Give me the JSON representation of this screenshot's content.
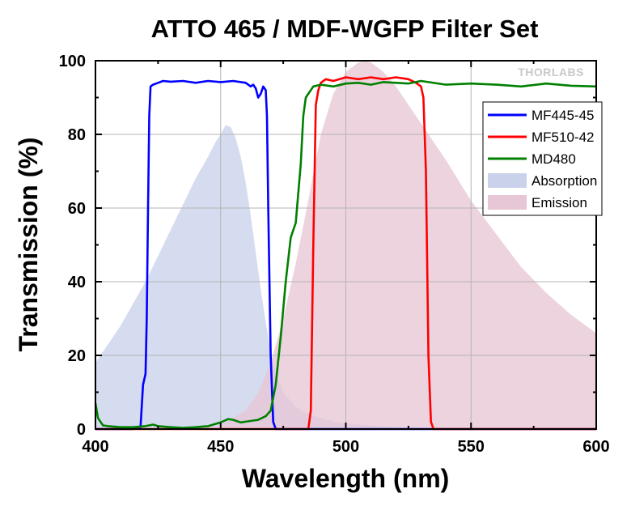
{
  "chart_data": {
    "type": "area",
    "title": "ATTO 465 / MDF-WGFP Filter Set",
    "xlabel": "Wavelength (nm)",
    "ylabel": "Transmission (%)",
    "xlim": [
      400,
      600
    ],
    "ylim": [
      0,
      100
    ],
    "x_ticks": [
      400,
      450,
      500,
      550,
      600
    ],
    "y_ticks": [
      0,
      20,
      40,
      60,
      80,
      100
    ],
    "grid": true,
    "legend_position": "right",
    "watermark": "THORLABS",
    "series": [
      {
        "name": "MF445-45",
        "kind": "line",
        "color": "#0000ff",
        "x": [
          400,
          410,
          415,
          418,
          419,
          420,
          420.5,
          421,
          421.5,
          422,
          423,
          425,
          427,
          430,
          435,
          440,
          445,
          450,
          455,
          460,
          462,
          463,
          464,
          465,
          466,
          467,
          468,
          468.5,
          469,
          470,
          471,
          472,
          480,
          600
        ],
        "y": [
          0,
          0,
          0,
          0.5,
          12,
          15,
          30,
          60,
          85,
          93,
          93.5,
          94,
          94.5,
          94.3,
          94.5,
          94,
          94.5,
          94.2,
          94.5,
          94,
          93,
          93.5,
          92.5,
          90,
          91,
          93,
          92,
          85,
          60,
          20,
          2,
          0,
          0,
          0
        ]
      },
      {
        "name": "MF510-42",
        "kind": "line",
        "color": "#ff0000",
        "x": [
          400,
          485,
          486,
          487,
          488,
          489,
          490,
          492,
          495,
          500,
          505,
          510,
          515,
          520,
          525,
          528,
          530,
          531,
          532,
          533,
          534,
          535,
          600
        ],
        "y": [
          0,
          0,
          5,
          50,
          88,
          92,
          94,
          95,
          94.5,
          95.5,
          95,
          95.5,
          95,
          95.5,
          95,
          94,
          93,
          90,
          70,
          20,
          2,
          0,
          0
        ]
      },
      {
        "name": "MD480",
        "kind": "line",
        "color": "#008000",
        "x": [
          400,
          401,
          403,
          405,
          410,
          415,
          420,
          423,
          425,
          430,
          435,
          440,
          445,
          450,
          453,
          455,
          458,
          460,
          465,
          468,
          470,
          472,
          474,
          476,
          478,
          480,
          482,
          483,
          484,
          485,
          487,
          490,
          495,
          500,
          505,
          510,
          515,
          520,
          525,
          530,
          540,
          550,
          560,
          570,
          580,
          590,
          600
        ],
        "y": [
          7,
          3,
          1,
          0.8,
          0.5,
          0.5,
          0.8,
          1.2,
          0.8,
          0.5,
          0.3,
          0.5,
          0.8,
          1.8,
          2.7,
          2.5,
          1.8,
          2,
          2.5,
          3.5,
          5,
          12,
          25,
          40,
          52,
          56,
          72,
          85,
          90,
          91,
          93,
          93.5,
          93,
          93.8,
          94,
          93.5,
          94.2,
          94,
          93.8,
          94.5,
          93.5,
          93.8,
          93.5,
          93,
          93.8,
          93.2,
          93
        ]
      },
      {
        "name": "Absorption",
        "kind": "area",
        "color": "#c9d2ea",
        "x": [
          400,
          405,
          410,
          415,
          420,
          425,
          430,
          435,
          440,
          445,
          448,
          450,
          452,
          454,
          456,
          458,
          460,
          462,
          464,
          466,
          468,
          470,
          472,
          475,
          480,
          485,
          490,
          495,
          500,
          510,
          520,
          530,
          540
        ],
        "y": [
          18,
          23,
          28,
          34,
          40,
          47,
          54,
          61,
          68,
          74,
          78,
          80,
          82.5,
          82,
          79,
          74,
          67,
          58,
          48,
          38,
          29,
          21,
          15,
          10,
          6,
          4,
          3,
          2,
          1.5,
          1,
          0.5,
          0.2,
          0
        ]
      },
      {
        "name": "Emission",
        "kind": "area",
        "color": "#e7c6d5",
        "x": [
          440,
          450,
          460,
          465,
          470,
          475,
          480,
          485,
          490,
          495,
          500,
          505,
          508,
          510,
          515,
          520,
          530,
          540,
          550,
          560,
          570,
          580,
          590,
          600
        ],
        "y": [
          0,
          1,
          5,
          10,
          18,
          30,
          45,
          62,
          80,
          91,
          97,
          99.5,
          100,
          99.5,
          97,
          93,
          83,
          73,
          62,
          53,
          44,
          37,
          31,
          26
        ]
      }
    ]
  }
}
